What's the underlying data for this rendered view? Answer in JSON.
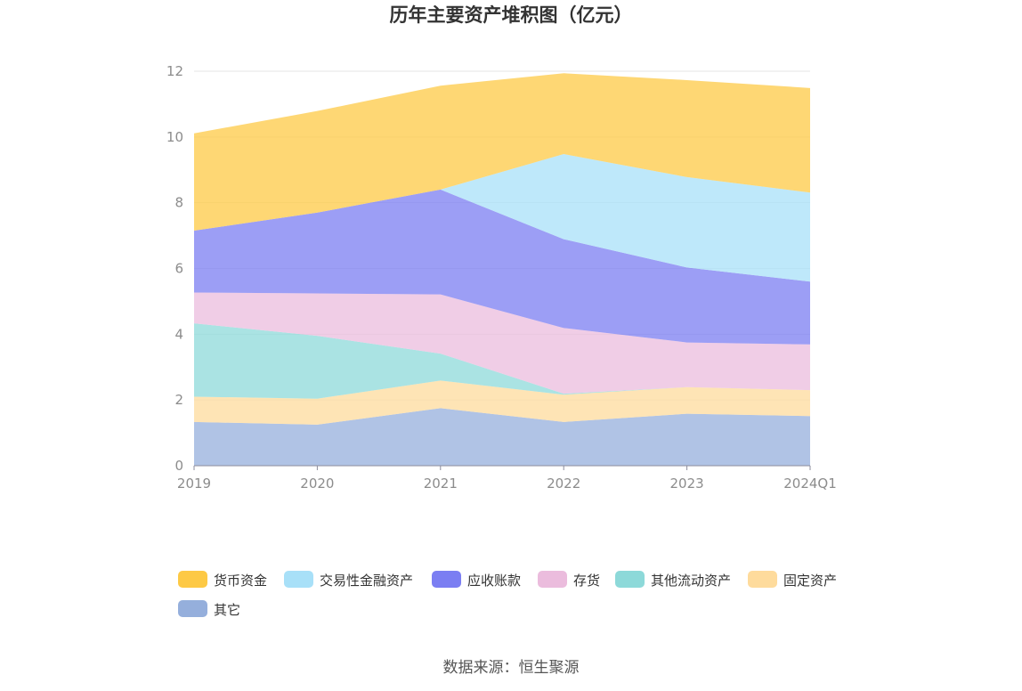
{
  "chart_data": {
    "type": "area",
    "stacked": true,
    "title": "历年主要资产堆积图（亿元）",
    "categories": [
      "2019",
      "2020",
      "2021",
      "2022",
      "2023",
      "2024Q1"
    ],
    "ylim": [
      0,
      12
    ],
    "yticks": [
      "0",
      "2",
      "4",
      "6",
      "8",
      "10",
      "12"
    ],
    "grid": true,
    "legend_position": "bottom",
    "series": [
      {
        "name": "其它",
        "color": "#95afdc",
        "values": [
          1.33,
          1.25,
          1.75,
          1.33,
          1.58,
          1.51
        ]
      },
      {
        "name": "固定资产",
        "color": "#fedb9c",
        "values": [
          0.77,
          0.79,
          0.84,
          0.83,
          0.81,
          0.79
        ]
      },
      {
        "name": "其他流动资产",
        "color": "#8dd9d9",
        "values": [
          2.23,
          1.91,
          0.82,
          0.03,
          0.0,
          0.0
        ]
      },
      {
        "name": "存货",
        "color": "#ebbcdd",
        "values": [
          0.94,
          1.29,
          1.8,
          2.0,
          1.36,
          1.39
        ]
      },
      {
        "name": "应收账款",
        "color": "#7b7ef2",
        "values": [
          1.88,
          2.46,
          3.19,
          2.7,
          2.28,
          1.91
        ]
      },
      {
        "name": "交易性金融资产",
        "color": "#a8e0f8",
        "values": [
          0.0,
          0.0,
          0.0,
          2.59,
          2.75,
          2.71
        ]
      },
      {
        "name": "货币资金",
        "color": "#fdc945",
        "values": [
          2.96,
          3.09,
          3.16,
          2.46,
          2.95,
          3.18
        ]
      }
    ]
  },
  "legend_order": [
    "货币资金",
    "交易性金融资产",
    "应收账款",
    "存货",
    "其他流动资产",
    "固定资产",
    "其它"
  ],
  "source": "数据来源：恒生聚源"
}
